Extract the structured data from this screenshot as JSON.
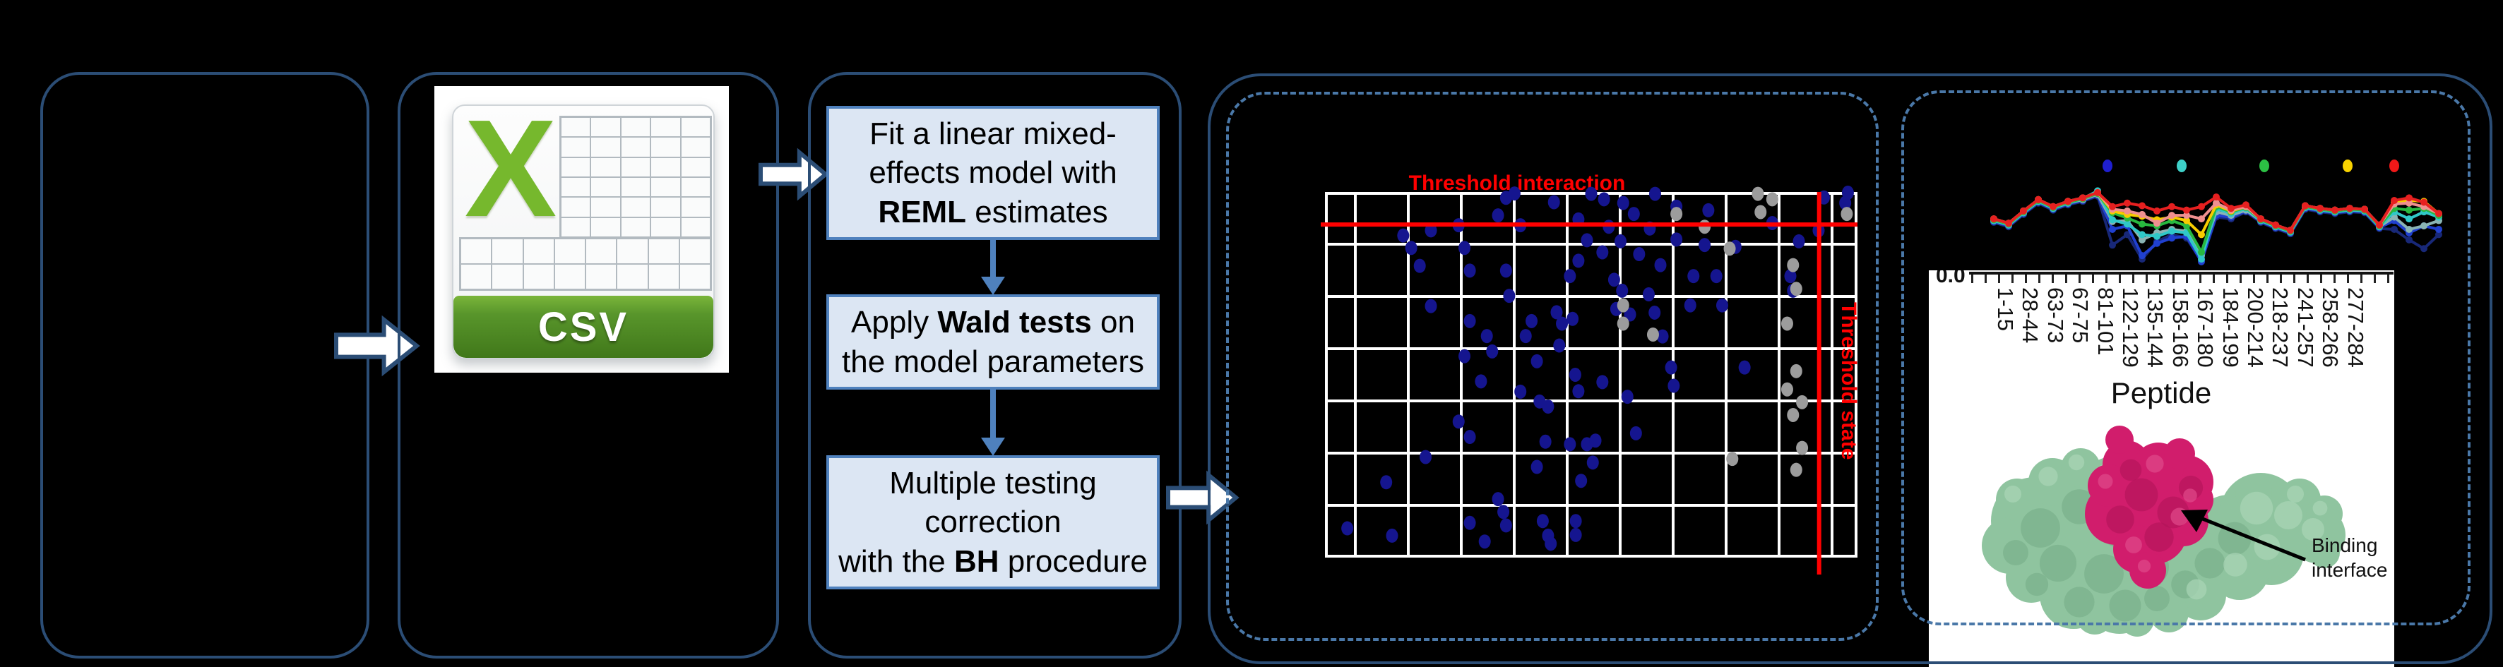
{
  "figure": {
    "background": "#000000",
    "panel_border_color": "#2b4d75",
    "dashed_border_color": "#4a78a8",
    "accent_blue": "#4f81bd",
    "threshold_red": "#ff0000"
  },
  "csv_icon": {
    "letter": "X",
    "banner_label": "CSV",
    "x_color": "#76b82d",
    "banner_green": "#58952b"
  },
  "pipeline": {
    "box_bg": "#dce6f3",
    "box_border": "#4f81bd",
    "arrow_color": "#4f81bd",
    "boxes": [
      {
        "id": "reml-box",
        "lines": [
          [
            {
              "t": "Fit a linear mixed-"
            }
          ],
          [
            {
              "t": "effects model with"
            }
          ],
          [
            {
              "t": "REML",
              "b": true
            },
            {
              "t": " estimates"
            }
          ]
        ]
      },
      {
        "id": "wald-box",
        "lines": [
          [
            {
              "t": "Apply "
            },
            {
              "t": "Wald tests",
              "b": true
            },
            {
              "t": " on"
            }
          ],
          [
            {
              "t": "the model parameters"
            }
          ]
        ]
      },
      {
        "id": "bh-box",
        "lines": [
          [
            {
              "t": "Multiple testing"
            }
          ],
          [
            {
              "t": "correction"
            }
          ],
          [
            {
              "t": "with the "
            },
            {
              "t": "BH",
              "b": true
            },
            {
              "t": " procedure"
            }
          ]
        ]
      }
    ]
  },
  "chart_data": [
    {
      "type": "scatter",
      "title": "Threshold interaction",
      "title_color": "#ff0000",
      "grid": true,
      "grid_color": "#ffffff",
      "grid_cols": 10,
      "grid_rows": 7,
      "threshold_interaction_label": "Threshold interaction",
      "threshold_state_label": "Threshold state",
      "threshold_interaction_y_frac": 0.089,
      "threshold_state_x_frac": 0.928,
      "note": "axes unlabeled in image; point coordinates are fractions of the plot box (x right, y down)",
      "series": [
        {
          "name": "blue-points",
          "color": "#15158f",
          "points": [
            [
              0.147,
              0.119
            ],
            [
              0.162,
              0.153
            ],
            [
              0.178,
              0.202
            ],
            [
              0.199,
              0.105
            ],
            [
              0.251,
              0.091
            ],
            [
              0.262,
              0.153
            ],
            [
              0.199,
              0.312
            ],
            [
              0.272,
              0.353
            ],
            [
              0.262,
              0.449
            ],
            [
              0.272,
              0.215
            ],
            [
              0.304,
              0.394
            ],
            [
              0.314,
              0.436
            ],
            [
              0.293,
              0.518
            ],
            [
              0.251,
              0.628
            ],
            [
              0.272,
              0.67
            ],
            [
              0.189,
              0.725
            ],
            [
              0.115,
              0.794
            ],
            [
              0.042,
              0.92
            ],
            [
              0.126,
              0.94
            ],
            [
              0.272,
              0.905
            ],
            [
              0.325,
              0.064
            ],
            [
              0.34,
              0.016
            ],
            [
              0.356,
              0.004
            ],
            [
              0.367,
              0.091
            ],
            [
              0.34,
              0.215
            ],
            [
              0.346,
              0.284
            ],
            [
              0.388,
              0.353
            ],
            [
              0.377,
              0.394
            ],
            [
              0.398,
              0.463
            ],
            [
              0.367,
              0.546
            ],
            [
              0.403,
              0.573
            ],
            [
              0.419,
              0.587
            ],
            [
              0.414,
              0.683
            ],
            [
              0.398,
              0.752
            ],
            [
              0.409,
              0.9
            ],
            [
              0.419,
              0.94
            ],
            [
              0.424,
              0.962
            ],
            [
              0.471,
              0.9
            ],
            [
              0.471,
              0.938
            ],
            [
              0.325,
              0.84
            ],
            [
              0.335,
              0.875
            ],
            [
              0.34,
              0.912
            ],
            [
              0.3,
              0.956
            ],
            [
              0.43,
              0.028
            ],
            [
              0.476,
              0.075
            ],
            [
              0.492,
              0.132
            ],
            [
              0.476,
              0.188
            ],
            [
              0.46,
              0.23
            ],
            [
              0.435,
              0.329
            ],
            [
              0.445,
              0.36
            ],
            [
              0.465,
              0.347
            ],
            [
              0.44,
              0.42
            ],
            [
              0.47,
              0.5
            ],
            [
              0.476,
              0.545
            ],
            [
              0.46,
              0.69
            ],
            [
              0.492,
              0.69
            ],
            [
              0.503,
              0.74
            ],
            [
              0.508,
              0.68
            ],
            [
              0.481,
              0.79
            ],
            [
              0.524,
              0.02
            ],
            [
              0.533,
              0.095
            ],
            [
              0.555,
              0.135
            ],
            [
              0.521,
              0.165
            ],
            [
              0.543,
              0.24
            ],
            [
              0.558,
              0.27
            ],
            [
              0.547,
              0.32
            ],
            [
              0.521,
              0.52
            ],
            [
              0.568,
              0.56
            ],
            [
              0.584,
              0.66
            ],
            [
              0.573,
              0.335
            ],
            [
              0.608,
              0.28
            ],
            [
              0.619,
              0.33
            ],
            [
              0.634,
              0.395
            ],
            [
              0.65,
              0.48
            ],
            [
              0.655,
              0.53
            ],
            [
              0.686,
              0.31
            ],
            [
              0.692,
              0.23
            ],
            [
              0.713,
              0.145
            ],
            [
              0.735,
              0.23
            ],
            [
              0.746,
              0.31
            ],
            [
              0.788,
              0.48
            ],
            [
              0.771,
              0.15
            ],
            [
              0.84,
              0.085
            ],
            [
              0.874,
              0.23
            ],
            [
              0.879,
              0.27
            ],
            [
              0.937,
              0.015
            ],
            [
              0.977,
              0.03
            ],
            [
              0.982,
              0.002
            ],
            [
              0.927,
              0.105
            ],
            [
              0.89,
              0.135
            ],
            [
              0.5,
              0.005
            ],
            [
              0.56,
              0.03
            ],
            [
              0.62,
              0.005
            ],
            [
              0.66,
              0.04
            ],
            [
              0.58,
              0.06
            ],
            [
              0.61,
              0.1
            ],
            [
              0.66,
              0.13
            ],
            [
              0.72,
              0.05
            ],
            [
              0.59,
              0.17
            ],
            [
              0.63,
              0.2
            ]
          ]
        },
        {
          "name": "gray-points",
          "color": "#9c9c9c",
          "points": [
            [
              0.56,
              0.31
            ],
            [
              0.56,
              0.36
            ],
            [
              0.616,
              0.39
            ],
            [
              0.713,
              0.095
            ],
            [
              0.76,
              0.155
            ],
            [
              0.813,
              0.005
            ],
            [
              0.818,
              0.055
            ],
            [
              0.84,
              0.02
            ],
            [
              0.879,
              0.2
            ],
            [
              0.885,
              0.265
            ],
            [
              0.868,
              0.36
            ],
            [
              0.885,
              0.49
            ],
            [
              0.868,
              0.54
            ],
            [
              0.896,
              0.575
            ],
            [
              0.879,
              0.61
            ],
            [
              0.896,
              0.7
            ],
            [
              0.885,
              0.76
            ],
            [
              0.765,
              0.73
            ],
            [
              0.98,
              0.06
            ],
            [
              0.66,
              0.06
            ]
          ]
        }
      ]
    },
    {
      "type": "line",
      "xlabel": "Peptide",
      "y_tick_label": "0.0",
      "categories": [
        "1-15",
        "28-44",
        "63-73",
        "67-75",
        "81-101",
        "122-129",
        "135-144",
        "158-166",
        "167-180",
        "184-199",
        "200-214",
        "218-237",
        "241-257",
        "258-266",
        "277-284"
      ],
      "legend_dot_colors": [
        "#1f1fd0",
        "#3ed0c8",
        "#2cc044",
        "#f8d200",
        "#f01818"
      ],
      "note": "values are fractional depth below the top of the plot band (0=top/high uptake, 1=bottom axis)",
      "series": [
        {
          "name": "navy",
          "color": "#182878",
          "values": [
            0.46,
            0.51,
            0.37,
            0.24,
            0.32,
            0.26,
            0.22,
            0.16,
            0.72,
            0.6,
            0.88,
            0.68,
            0.6,
            0.64,
            0.9,
            0.4,
            0.42,
            0.34,
            0.46,
            0.53,
            0.59,
            0.31,
            0.34,
            0.36,
            0.34,
            0.35,
            0.53,
            0.54,
            0.66,
            0.76,
            0.6
          ]
        },
        {
          "name": "blue",
          "color": "#2040d0",
          "values": [
            0.45,
            0.5,
            0.36,
            0.23,
            0.31,
            0.25,
            0.21,
            0.15,
            0.54,
            0.5,
            0.84,
            0.7,
            0.64,
            0.62,
            0.91,
            0.38,
            0.4,
            0.33,
            0.45,
            0.52,
            0.58,
            0.3,
            0.33,
            0.35,
            0.33,
            0.34,
            0.52,
            0.44,
            0.58,
            0.5,
            0.54
          ]
        },
        {
          "name": "teal-gray",
          "color": "#8ab4b4",
          "values": [
            0.44,
            0.49,
            0.35,
            0.22,
            0.3,
            0.24,
            0.2,
            0.14,
            0.45,
            0.44,
            0.66,
            0.58,
            0.54,
            0.56,
            0.84,
            0.34,
            0.38,
            0.32,
            0.44,
            0.51,
            0.57,
            0.29,
            0.32,
            0.34,
            0.32,
            0.33,
            0.51,
            0.4,
            0.54,
            0.5,
            0.44
          ]
        },
        {
          "name": "cyan",
          "color": "#30c8c8",
          "values": [
            0.44,
            0.49,
            0.35,
            0.22,
            0.3,
            0.24,
            0.19,
            0.1,
            0.43,
            0.48,
            0.6,
            0.62,
            0.56,
            0.58,
            0.88,
            0.3,
            0.36,
            0.3,
            0.44,
            0.51,
            0.57,
            0.29,
            0.32,
            0.34,
            0.32,
            0.33,
            0.51,
            0.34,
            0.42,
            0.34,
            0.4
          ]
        },
        {
          "name": "green",
          "color": "#28b840",
          "values": [
            0.43,
            0.48,
            0.34,
            0.21,
            0.29,
            0.23,
            0.19,
            0.13,
            0.35,
            0.41,
            0.48,
            0.5,
            0.44,
            0.5,
            0.8,
            0.28,
            0.34,
            0.29,
            0.43,
            0.5,
            0.56,
            0.28,
            0.31,
            0.33,
            0.31,
            0.32,
            0.5,
            0.3,
            0.32,
            0.3,
            0.38
          ]
        },
        {
          "name": "yellow",
          "color": "#f8cc00",
          "values": [
            0.42,
            0.47,
            0.33,
            0.2,
            0.28,
            0.22,
            0.18,
            0.12,
            0.33,
            0.37,
            0.39,
            0.43,
            0.4,
            0.44,
            0.6,
            0.26,
            0.33,
            0.28,
            0.42,
            0.49,
            0.55,
            0.27,
            0.3,
            0.32,
            0.3,
            0.31,
            0.49,
            0.23,
            0.21,
            0.22,
            0.36
          ]
        },
        {
          "name": "salmon",
          "color": "#f09090",
          "values": [
            0.42,
            0.47,
            0.33,
            0.2,
            0.28,
            0.22,
            0.18,
            0.12,
            0.31,
            0.33,
            0.37,
            0.47,
            0.38,
            0.38,
            0.42,
            0.24,
            0.32,
            0.28,
            0.42,
            0.49,
            0.55,
            0.27,
            0.3,
            0.32,
            0.3,
            0.31,
            0.49,
            0.25,
            0.24,
            0.28,
            0.36
          ]
        },
        {
          "name": "red",
          "color": "#e62020",
          "values": [
            0.42,
            0.47,
            0.33,
            0.2,
            0.28,
            0.22,
            0.18,
            0.12,
            0.28,
            0.24,
            0.27,
            0.33,
            0.28,
            0.32,
            0.28,
            0.17,
            0.3,
            0.26,
            0.42,
            0.49,
            0.55,
            0.27,
            0.3,
            0.32,
            0.3,
            0.31,
            0.49,
            0.21,
            0.18,
            0.23,
            0.36
          ]
        }
      ]
    }
  ],
  "protein": {
    "body_color": "#8fc49f",
    "interface_color": "#d11d6c",
    "label": "Binding interface"
  }
}
